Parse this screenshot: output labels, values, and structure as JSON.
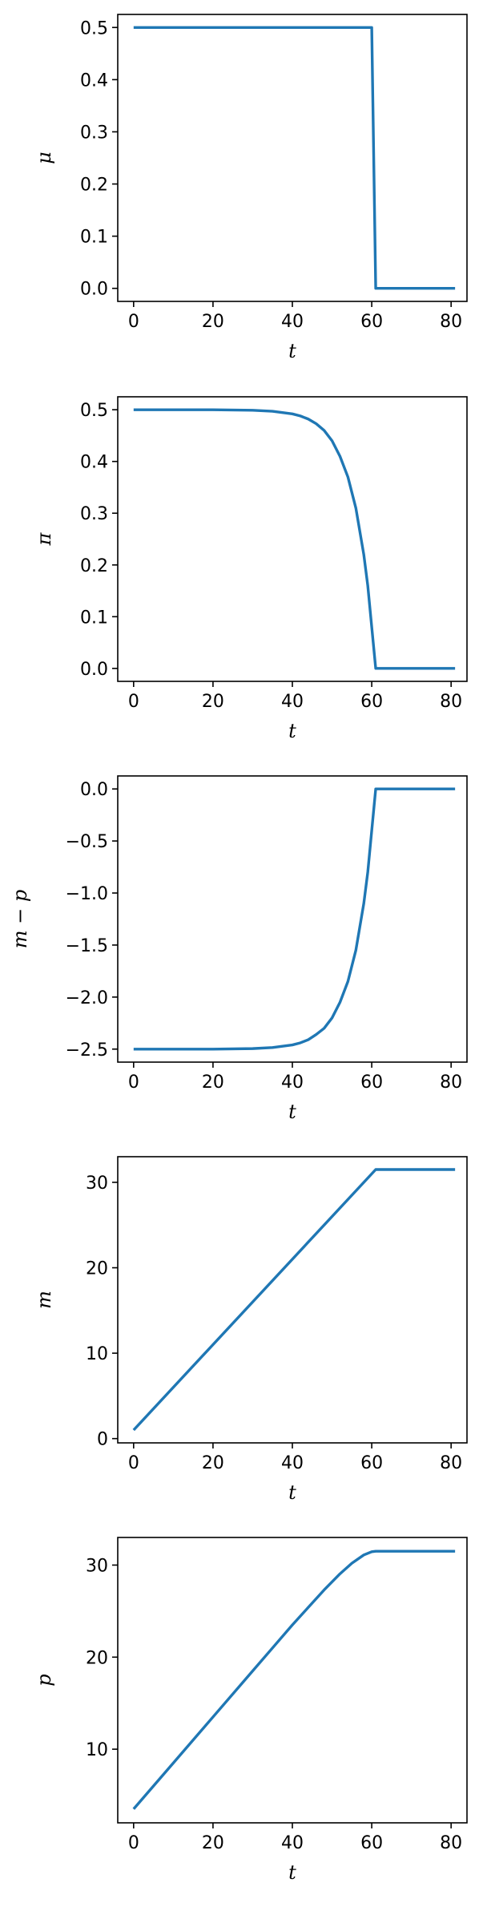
{
  "style": {
    "line_color": "#1f77b4",
    "axis_color": "#000000",
    "background": "#ffffff",
    "grid": false,
    "legend": "none"
  },
  "chart_data": [
    {
      "type": "line",
      "title": "",
      "xlabel": "t",
      "ylabel": "μ",
      "xlim": [
        -4,
        84
      ],
      "ylim": [
        -0.025,
        0.525
      ],
      "xticks": [
        0,
        20,
        40,
        60,
        80
      ],
      "xtick_labels": [
        "0",
        "20",
        "40",
        "60",
        "80"
      ],
      "yticks": [
        0.0,
        0.1,
        0.2,
        0.3,
        0.4,
        0.5
      ],
      "ytick_labels": [
        "0.0",
        "0.1",
        "0.2",
        "0.3",
        "0.4",
        "0.5"
      ],
      "series": [
        {
          "x": [
            0,
            60,
            61,
            62,
            70,
            81
          ],
          "y": [
            0.5,
            0.5,
            0.0,
            0.0,
            0.0,
            0.0
          ]
        }
      ]
    },
    {
      "type": "line",
      "title": "",
      "xlabel": "t",
      "ylabel": "π",
      "xlim": [
        -4,
        84
      ],
      "ylim": [
        -0.025,
        0.525
      ],
      "xticks": [
        0,
        20,
        40,
        60,
        80
      ],
      "xtick_labels": [
        "0",
        "20",
        "40",
        "60",
        "80"
      ],
      "yticks": [
        0.0,
        0.1,
        0.2,
        0.3,
        0.4,
        0.5
      ],
      "ytick_labels": [
        "0.0",
        "0.1",
        "0.2",
        "0.3",
        "0.4",
        "0.5"
      ],
      "series": [
        {
          "x": [
            0,
            10,
            20,
            30,
            35,
            40,
            42,
            44,
            46,
            48,
            50,
            52,
            54,
            56,
            58,
            59,
            60,
            61,
            62,
            70,
            81
          ],
          "y": [
            0.5,
            0.5,
            0.5,
            0.499,
            0.497,
            0.492,
            0.488,
            0.482,
            0.473,
            0.46,
            0.44,
            0.41,
            0.37,
            0.31,
            0.22,
            0.16,
            0.08,
            0.0,
            0.0,
            0.0,
            0.0
          ]
        }
      ]
    },
    {
      "type": "line",
      "title": "",
      "xlabel": "t",
      "ylabel": "m − p",
      "xlim": [
        -4,
        84
      ],
      "ylim": [
        -2.625,
        0.125
      ],
      "xticks": [
        0,
        20,
        40,
        60,
        80
      ],
      "xtick_labels": [
        "0",
        "20",
        "40",
        "60",
        "80"
      ],
      "yticks": [
        0.0,
        -0.5,
        -1.0,
        -1.5,
        -2.0,
        -2.5
      ],
      "ytick_labels": [
        "0.0",
        "−0.5",
        "−1.0",
        "−1.5",
        "−2.0",
        "−2.5"
      ],
      "series": [
        {
          "x": [
            0,
            10,
            20,
            30,
            35,
            40,
            42,
            44,
            46,
            48,
            50,
            52,
            54,
            56,
            58,
            59,
            60,
            61,
            62,
            70,
            81
          ],
          "y": [
            -2.5,
            -2.5,
            -2.5,
            -2.495,
            -2.485,
            -2.46,
            -2.44,
            -2.41,
            -2.36,
            -2.3,
            -2.2,
            -2.05,
            -1.85,
            -1.55,
            -1.1,
            -0.8,
            -0.4,
            0.0,
            0.0,
            0.0,
            0.0
          ]
        }
      ]
    },
    {
      "type": "line",
      "title": "",
      "xlabel": "t",
      "ylabel": "m",
      "xlim": [
        -4,
        84
      ],
      "ylim": [
        -0.5,
        33
      ],
      "xticks": [
        0,
        20,
        40,
        60,
        80
      ],
      "xtick_labels": [
        "0",
        "20",
        "40",
        "60",
        "80"
      ],
      "yticks": [
        0,
        10,
        20,
        30
      ],
      "ytick_labels": [
        "0",
        "10",
        "20",
        "30"
      ],
      "series": [
        {
          "x": [
            0,
            61,
            62,
            70,
            81
          ],
          "y": [
            1.0,
            31.5,
            31.5,
            31.5,
            31.5
          ]
        }
      ]
    },
    {
      "type": "line",
      "title": "",
      "xlabel": "t",
      "ylabel": "p",
      "xlim": [
        -4,
        84
      ],
      "ylim": [
        2.0,
        33.0
      ],
      "xticks": [
        0,
        20,
        40,
        60,
        80
      ],
      "xtick_labels": [
        "0",
        "20",
        "40",
        "60",
        "80"
      ],
      "yticks": [
        10,
        20,
        30
      ],
      "ytick_labels": [
        "10",
        "20",
        "30"
      ],
      "series": [
        {
          "x": [
            0,
            10,
            20,
            30,
            35,
            40,
            44,
            48,
            52,
            55,
            58,
            60,
            61,
            62,
            70,
            81
          ],
          "y": [
            3.5,
            8.5,
            13.5,
            18.5,
            21.0,
            23.5,
            25.4,
            27.3,
            29.05,
            30.2,
            31.1,
            31.45,
            31.5,
            31.5,
            31.5,
            31.5
          ]
        }
      ]
    }
  ]
}
